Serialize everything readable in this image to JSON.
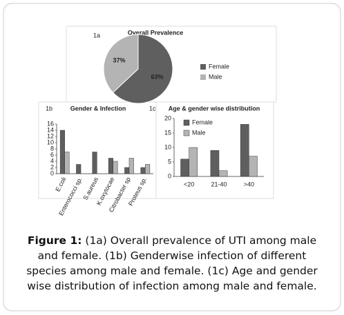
{
  "chart_data": [
    {
      "type": "pie",
      "label": "1a",
      "title": "Overall Prevalence",
      "categories": [
        "Female",
        "Male"
      ],
      "values": [
        63,
        37
      ],
      "value_labels": [
        "63%",
        "37%"
      ],
      "colors": [
        "#5f5f5f",
        "#b4b4b4"
      ],
      "legend": "right"
    },
    {
      "type": "bar",
      "label": "1b",
      "title": "Gender & Infection",
      "categories": [
        "E.coli",
        "Enterococci sp.",
        "S.aureus",
        "K.oxytocae",
        "Citrobacter sp",
        "Proteus sp."
      ],
      "series": [
        {
          "name": "Female",
          "color": "#5f5f5f",
          "values": [
            14,
            3,
            7,
            5,
            2,
            2
          ]
        },
        {
          "name": "Male",
          "color": "#b4b4b4",
          "values": [
            7,
            0,
            0,
            4,
            5,
            3
          ]
        }
      ],
      "ylim": [
        0,
        16
      ],
      "yticks": [
        0,
        2,
        4,
        6,
        8,
        10,
        12,
        14,
        16
      ],
      "legend": "none"
    },
    {
      "type": "bar",
      "label": "1c",
      "title": "Age & gender wise distribution",
      "categories": [
        "<20",
        "21-40",
        ">40"
      ],
      "series": [
        {
          "name": "Female",
          "color": "#5f5f5f",
          "values": [
            6,
            9,
            18
          ]
        },
        {
          "name": "Male",
          "color": "#b4b4b4",
          "values": [
            10,
            2,
            7
          ]
        }
      ],
      "ylim": [
        0,
        20
      ],
      "yticks": [
        0,
        5,
        10,
        15,
        20
      ],
      "legend": "top-left"
    }
  ],
  "caption": {
    "label": "Figure 1:",
    "text": "(1a) Overall prevalence of UTI among male and female. (1b) Genderwise infection of different species among male and female. (1c) Age and gender wise distribution of infection among male and female."
  }
}
